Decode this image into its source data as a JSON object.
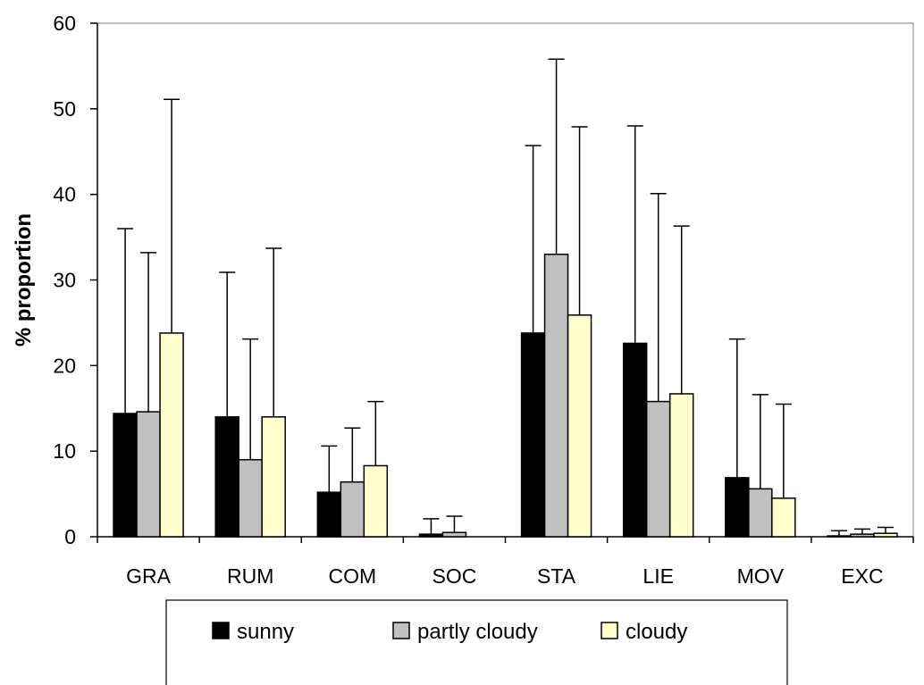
{
  "chart_data": {
    "type": "bar",
    "title": "",
    "xlabel": "",
    "ylabel": "% proportion",
    "ylim": [
      0,
      60
    ],
    "yticks": [
      "0",
      "10",
      "20",
      "30",
      "40",
      "50",
      "60"
    ],
    "categories": [
      "GRA",
      "RUM",
      "COM",
      "SOC",
      "STA",
      "LIE",
      "MOV",
      "EXC"
    ],
    "series": [
      {
        "name": "sunny",
        "color": "#000000",
        "values": [
          14.4,
          14.0,
          5.2,
          0.3,
          23.8,
          22.6,
          6.9,
          0.1
        ],
        "error_upper": [
          36.0,
          30.9,
          10.6,
          2.1,
          45.7,
          48.0,
          23.1,
          0.7
        ]
      },
      {
        "name": "partly cloudy",
        "color": "#c0c0c0",
        "values": [
          14.6,
          9.0,
          6.4,
          0.5,
          33.0,
          15.8,
          5.6,
          0.3
        ],
        "error_upper": [
          33.2,
          23.1,
          12.7,
          2.4,
          55.8,
          40.1,
          16.6,
          0.9
        ]
      },
      {
        "name": "cloudy",
        "color": "#ffffcc",
        "values": [
          23.8,
          14.0,
          8.3,
          0.0,
          25.9,
          16.7,
          4.5,
          0.4
        ],
        "error_upper": [
          51.1,
          33.7,
          15.8,
          0.0,
          47.9,
          36.3,
          15.5,
          1.1
        ]
      }
    ],
    "grid": false,
    "legend": "bottom",
    "error_bars": "upper"
  }
}
